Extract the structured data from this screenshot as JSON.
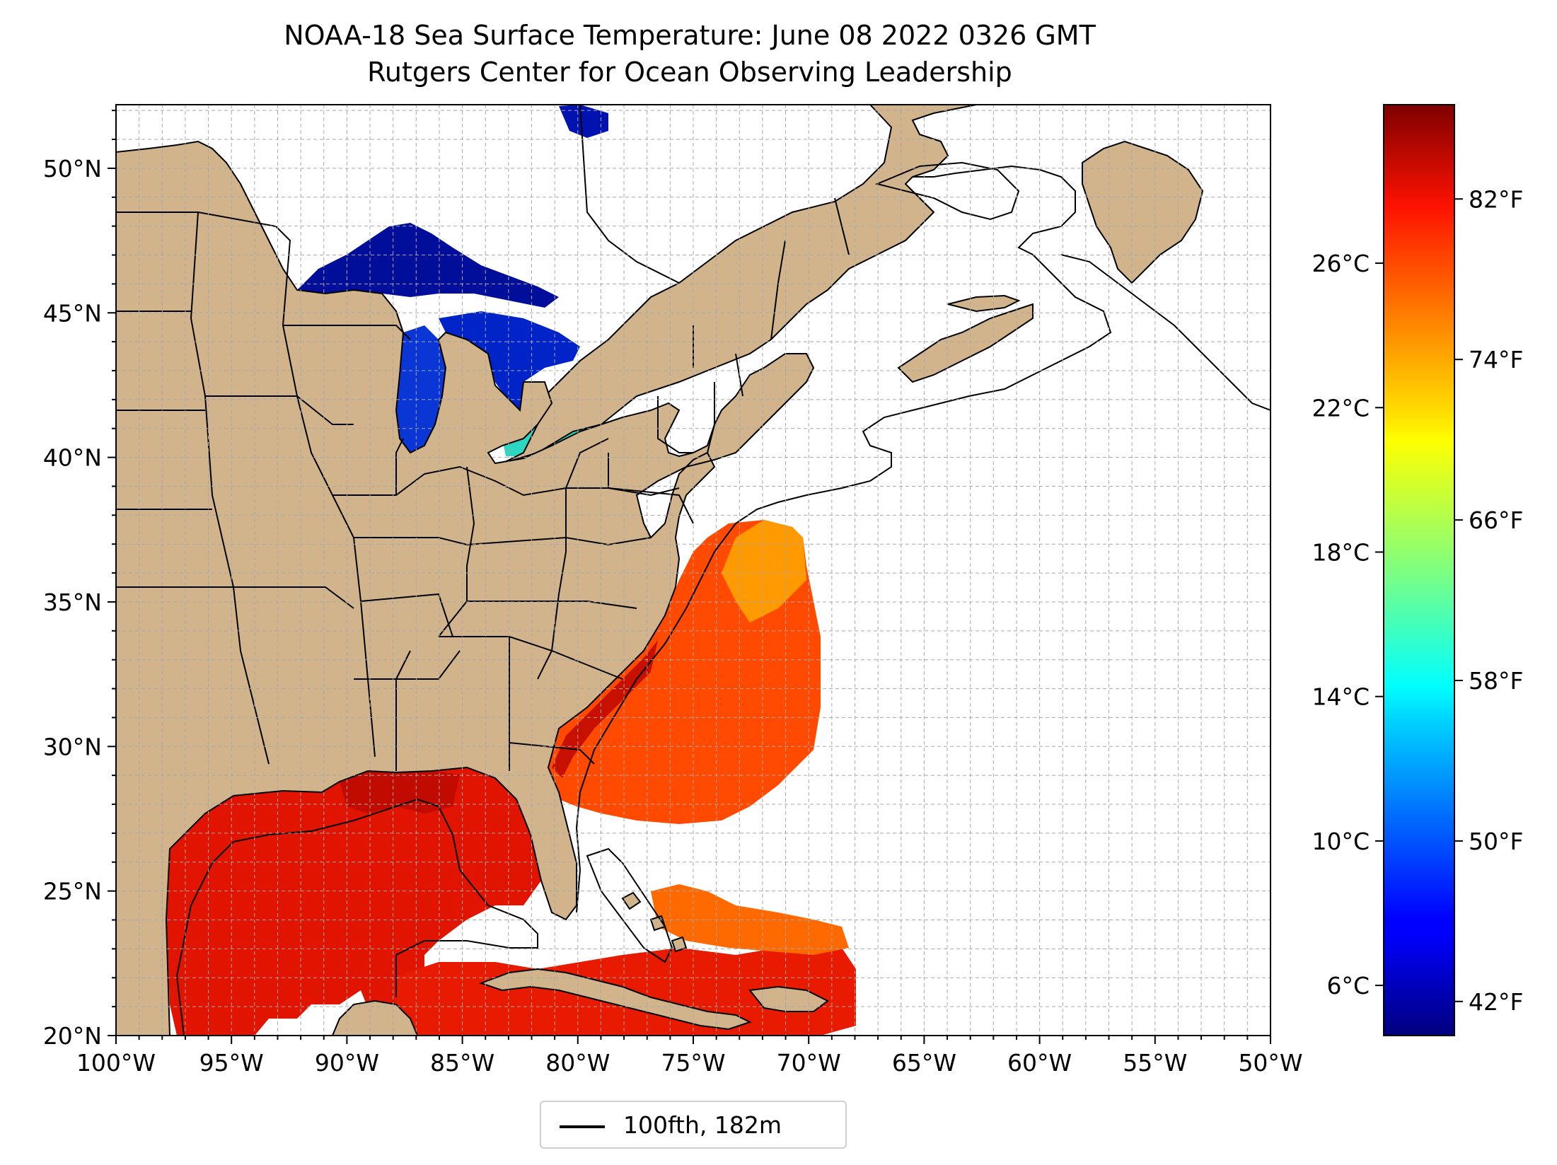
{
  "title": "NOAA-18 Sea Surface Temperature: June 08 2022 0326 GMT",
  "subtitle": "Rutgers Center for Ocean Observing Leadership",
  "map": {
    "lon_range": [
      -100,
      -50
    ],
    "lat_range": [
      20,
      52.2
    ],
    "gridlines": true,
    "lat_ticks": [
      {
        "value": 50,
        "label": "50°N"
      },
      {
        "value": 45,
        "label": "45°N"
      },
      {
        "value": 40,
        "label": "40°N"
      },
      {
        "value": 35,
        "label": "35°N"
      },
      {
        "value": 30,
        "label": "30°N"
      },
      {
        "value": 25,
        "label": "25°N"
      },
      {
        "value": 20,
        "label": "20°N"
      }
    ],
    "lon_ticks": [
      {
        "value": -100,
        "label": "100°W"
      },
      {
        "value": -95,
        "label": "95°W"
      },
      {
        "value": -90,
        "label": "90°W"
      },
      {
        "value": -85,
        "label": "85°W"
      },
      {
        "value": -80,
        "label": "80°W"
      },
      {
        "value": -75,
        "label": "75°W"
      },
      {
        "value": -70,
        "label": "70°W"
      },
      {
        "value": -65,
        "label": "65°W"
      },
      {
        "value": -60,
        "label": "60°W"
      },
      {
        "value": -55,
        "label": "55°W"
      },
      {
        "value": -50,
        "label": "50°W"
      }
    ],
    "colors": {
      "land": "#d2b48c",
      "inland_water": "#93b4e0",
      "ocean_nodata": "#ffffff",
      "grid": "#a8a8a8"
    }
  },
  "colorbar": {
    "colormap": "jet",
    "range_f": [
      40.3,
      86.7
    ],
    "fahrenheit_ticks": [
      {
        "value": 82,
        "label": "82°F"
      },
      {
        "value": 74,
        "label": "74°F"
      },
      {
        "value": 66,
        "label": "66°F"
      },
      {
        "value": 58,
        "label": "58°F"
      },
      {
        "value": 50,
        "label": "50°F"
      },
      {
        "value": 42,
        "label": "42°F"
      }
    ],
    "celsius_ticks": [
      {
        "value": 26,
        "label": "26°C"
      },
      {
        "value": 22,
        "label": "22°C"
      },
      {
        "value": 18,
        "label": "18°C"
      },
      {
        "value": 14,
        "label": "14°C"
      },
      {
        "value": 10,
        "label": "10°C"
      },
      {
        "value": 6,
        "label": "6°C"
      }
    ]
  },
  "legend": {
    "label": "100fth, 182m",
    "line_color": "#000000"
  }
}
